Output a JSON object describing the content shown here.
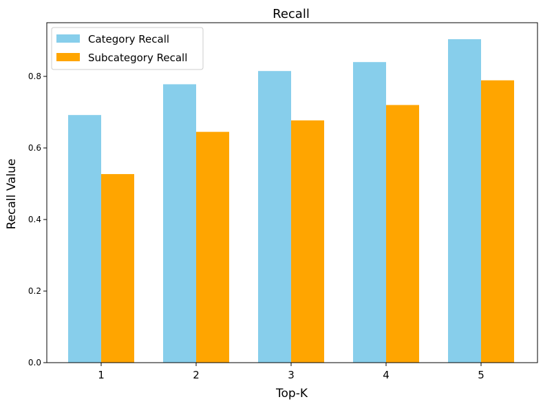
{
  "chart_data": {
    "type": "bar",
    "title": "Recall",
    "xlabel": "Top-K",
    "ylabel": "Recall Value",
    "categories": [
      "1",
      "2",
      "3",
      "4",
      "5"
    ],
    "series": [
      {
        "name": "Category Recall",
        "color": "#87CEEB",
        "values": [
          0.692,
          0.778,
          0.815,
          0.84,
          0.904
        ]
      },
      {
        "name": "Subcategory Recall",
        "color": "#FFA500",
        "values": [
          0.527,
          0.645,
          0.677,
          0.72,
          0.789
        ]
      }
    ],
    "ylim": [
      0,
      0.95
    ],
    "yticks": [
      "0.0",
      "0.2",
      "0.4",
      "0.6",
      "0.8"
    ],
    "grid": false,
    "legend_position": "top-left"
  }
}
